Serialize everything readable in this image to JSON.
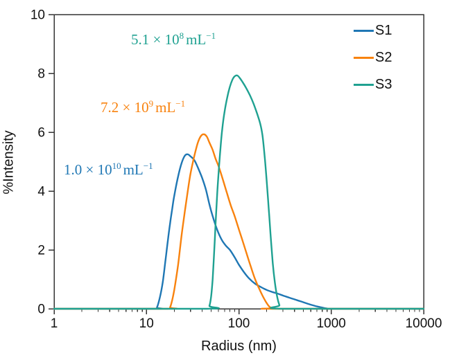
{
  "chart_data": {
    "type": "line",
    "title": "",
    "xlabel": "Radius (nm)",
    "ylabel": "%Intensity",
    "x_scale": "log",
    "xlim": [
      1,
      10000
    ],
    "ylim": [
      0,
      10
    ],
    "x_ticks": [
      1,
      10,
      100,
      1000,
      10000
    ],
    "x_minor_tick_multiples": [
      2,
      3,
      4,
      5,
      6,
      7,
      8,
      9
    ],
    "y_ticks": [
      0,
      2,
      4,
      6,
      8,
      10
    ],
    "grid": false,
    "legend_position": "upper right",
    "axis_color": "#333333",
    "series": [
      {
        "name": "S1",
        "color": "#1f77b4",
        "points": [
          [
            1,
            0
          ],
          [
            12,
            0
          ],
          [
            13,
            0.05
          ],
          [
            14,
            0.4
          ],
          [
            15,
            0.9
          ],
          [
            16,
            1.6
          ],
          [
            17,
            2.3
          ],
          [
            18,
            2.9
          ],
          [
            19,
            3.4
          ],
          [
            20,
            3.85
          ],
          [
            22,
            4.5
          ],
          [
            24,
            4.95
          ],
          [
            26,
            5.2
          ],
          [
            28,
            5.25
          ],
          [
            30,
            5.18
          ],
          [
            33,
            5.05
          ],
          [
            36,
            4.8
          ],
          [
            40,
            4.45
          ],
          [
            44,
            4.05
          ],
          [
            48,
            3.55
          ],
          [
            52,
            3.15
          ],
          [
            58,
            2.7
          ],
          [
            65,
            2.35
          ],
          [
            72,
            2.15
          ],
          [
            80,
            2.0
          ],
          [
            90,
            1.75
          ],
          [
            100,
            1.5
          ],
          [
            115,
            1.22
          ],
          [
            130,
            1.02
          ],
          [
            150,
            0.85
          ],
          [
            175,
            0.73
          ],
          [
            200,
            0.64
          ],
          [
            230,
            0.57
          ],
          [
            260,
            0.52
          ],
          [
            300,
            0.45
          ],
          [
            350,
            0.38
          ],
          [
            420,
            0.3
          ],
          [
            500,
            0.22
          ],
          [
            600,
            0.14
          ],
          [
            700,
            0.08
          ],
          [
            800,
            0.04
          ],
          [
            900,
            0.01
          ],
          [
            1000,
            0
          ],
          [
            10000,
            0
          ]
        ]
      },
      {
        "name": "S2",
        "color": "#f8820e",
        "points": [
          [
            1,
            0
          ],
          [
            17,
            0
          ],
          [
            18,
            0.05
          ],
          [
            19,
            0.3
          ],
          [
            20,
            0.65
          ],
          [
            22,
            1.5
          ],
          [
            24,
            2.5
          ],
          [
            26,
            3.3
          ],
          [
            28,
            4.0
          ],
          [
            30,
            4.6
          ],
          [
            33,
            5.2
          ],
          [
            36,
            5.65
          ],
          [
            39,
            5.88
          ],
          [
            42,
            5.93
          ],
          [
            45,
            5.85
          ],
          [
            48,
            5.65
          ],
          [
            52,
            5.4
          ],
          [
            56,
            5.1
          ],
          [
            61,
            4.8
          ],
          [
            67,
            4.4
          ],
          [
            74,
            3.95
          ],
          [
            82,
            3.5
          ],
          [
            90,
            3.15
          ],
          [
            100,
            2.7
          ],
          [
            110,
            2.3
          ],
          [
            120,
            1.92
          ],
          [
            135,
            1.42
          ],
          [
            150,
            1.0
          ],
          [
            165,
            0.7
          ],
          [
            180,
            0.45
          ],
          [
            195,
            0.25
          ],
          [
            210,
            0.1
          ],
          [
            225,
            0.02
          ],
          [
            235,
            0
          ],
          [
            10000,
            0
          ]
        ]
      },
      {
        "name": "S3",
        "color": "#1fa191",
        "points": [
          [
            1,
            0
          ],
          [
            45,
            0
          ],
          [
            48,
            0.1
          ],
          [
            50,
            0.4
          ],
          [
            52,
            1.0
          ],
          [
            54,
            1.9
          ],
          [
            56,
            2.9
          ],
          [
            58,
            3.8
          ],
          [
            60,
            4.5
          ],
          [
            63,
            5.4
          ],
          [
            66,
            6.1
          ],
          [
            70,
            6.7
          ],
          [
            75,
            7.2
          ],
          [
            80,
            7.55
          ],
          [
            85,
            7.78
          ],
          [
            90,
            7.9
          ],
          [
            96,
            7.93
          ],
          [
            102,
            7.85
          ],
          [
            110,
            7.7
          ],
          [
            120,
            7.5
          ],
          [
            132,
            7.25
          ],
          [
            145,
            6.95
          ],
          [
            158,
            6.62
          ],
          [
            170,
            6.3
          ],
          [
            180,
            5.9
          ],
          [
            190,
            5.2
          ],
          [
            200,
            4.35
          ],
          [
            210,
            3.45
          ],
          [
            220,
            2.55
          ],
          [
            232,
            1.6
          ],
          [
            245,
            0.9
          ],
          [
            260,
            0.4
          ],
          [
            275,
            0.12
          ],
          [
            290,
            0
          ],
          [
            10000,
            0
          ]
        ]
      }
    ],
    "annotations": [
      {
        "series": "S3",
        "prefix": "5.1 × 10",
        "exponent": "8",
        "unit": "mL",
        "unit_exponent": "−1",
        "color": "#1fa191"
      },
      {
        "series": "S2",
        "prefix": "7.2 × 10",
        "exponent": "9",
        "unit": "mL",
        "unit_exponent": "−1",
        "color": "#f8820e"
      },
      {
        "series": "S1",
        "prefix": "1.0 × 10",
        "exponent": "10",
        "unit": "mL",
        "unit_exponent": "−1",
        "color": "#1f77b4"
      }
    ]
  },
  "legend": {
    "items": [
      {
        "label": "S1",
        "color": "#1f77b4"
      },
      {
        "label": "S2",
        "color": "#f8820e"
      },
      {
        "label": "S3",
        "color": "#1fa191"
      }
    ]
  }
}
